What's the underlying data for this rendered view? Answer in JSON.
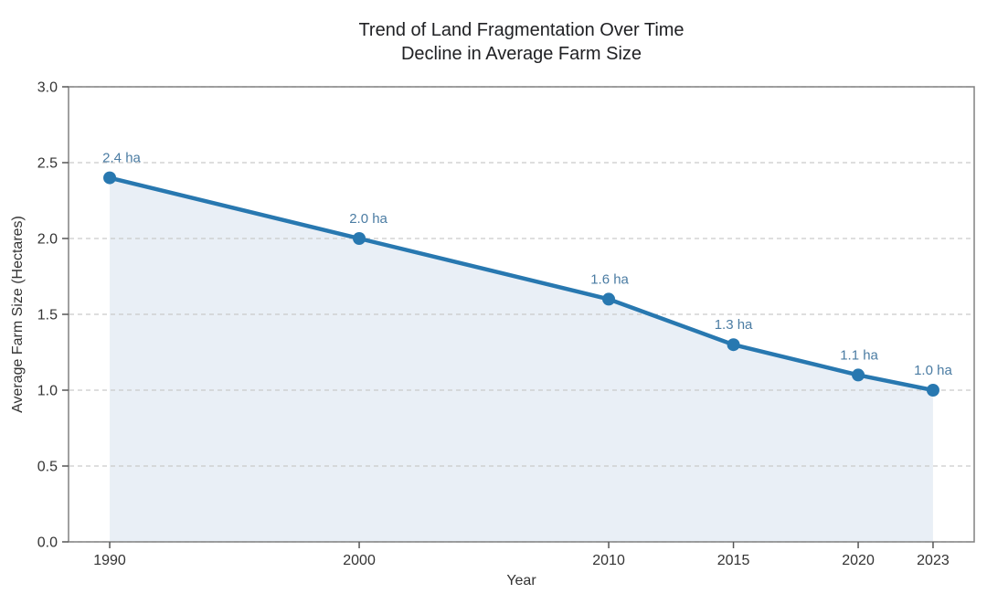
{
  "chart_data": {
    "type": "line",
    "title": "Trend of Land Fragmentation Over Time",
    "subtitle": "Decline in Average Farm Size",
    "xlabel": "Year",
    "ylabel": "Average Farm Size (Hectares)",
    "x": [
      1990,
      2000,
      2010,
      2015,
      2020,
      2023
    ],
    "values": [
      2.4,
      2.0,
      1.6,
      1.3,
      1.1,
      1.0
    ],
    "point_labels": [
      "2.4 ha",
      "2.0 ha",
      "1.6 ha",
      "1.3 ha",
      "1.1 ha",
      "1.0 ha"
    ],
    "xtick_labels": [
      "1990",
      "2000",
      "2010",
      "2015",
      "2020",
      "2023"
    ],
    "yticks": [
      0.0,
      0.5,
      1.0,
      1.5,
      2.0,
      2.5,
      3.0
    ],
    "ytick_labels": [
      "0.0",
      "0.5",
      "1.0",
      "1.5",
      "2.0",
      "2.5",
      "3.0"
    ],
    "ylim": [
      0.0,
      3.0
    ],
    "xlim": [
      1988.35,
      2024.65
    ],
    "grid": true,
    "grid_style": "dashed",
    "area_fill": true,
    "legend": "none",
    "label_dx": [
      13,
      10,
      1,
      0,
      1,
      0
    ],
    "colors": {
      "line": "#2878b0",
      "marker": "#2878b0",
      "area": "#e9eff6",
      "point_label": "#4b7ca3",
      "grid": "#c9c9c9",
      "spine": "#808080",
      "tick": "#555555",
      "tick_label": "#333333",
      "title": "#202124"
    }
  }
}
